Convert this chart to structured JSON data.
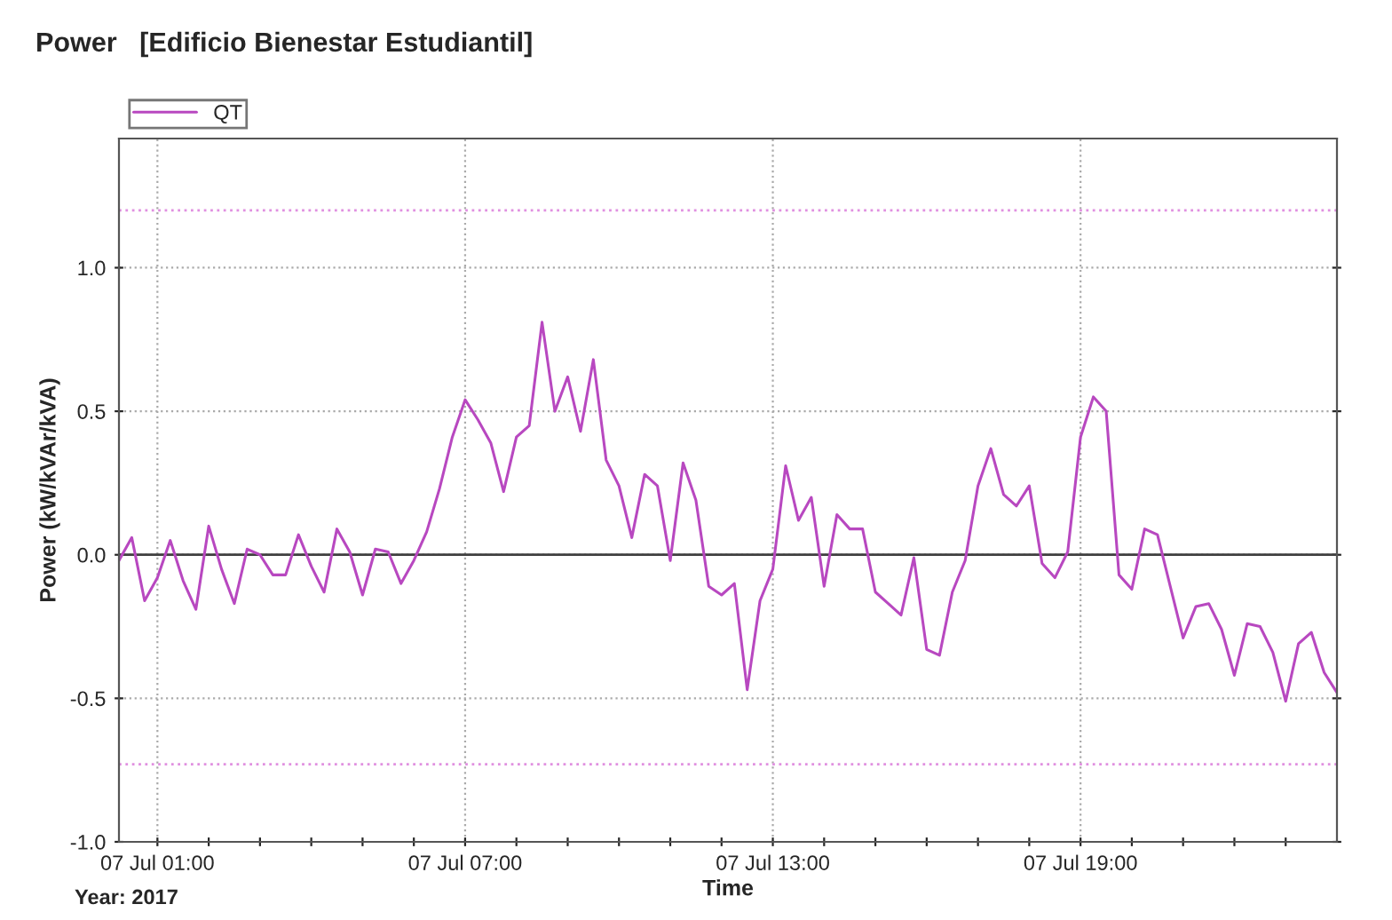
{
  "chart_data": {
    "type": "line",
    "title": "Power   [Edificio Bienestar Estudiantil]",
    "xlabel": "Time",
    "ylabel": "Power (kW/kVAr/kVA)",
    "annotations": [
      "Year: 2017"
    ],
    "x": [
      "2017-07-07T00:15",
      "2017-07-07T00:30",
      "2017-07-07T00:45",
      "2017-07-07T01:00",
      "2017-07-07T01:15",
      "2017-07-07T01:30",
      "2017-07-07T01:45",
      "2017-07-07T02:00",
      "2017-07-07T02:15",
      "2017-07-07T02:30",
      "2017-07-07T02:45",
      "2017-07-07T03:00",
      "2017-07-07T03:15",
      "2017-07-07T03:30",
      "2017-07-07T03:45",
      "2017-07-07T04:00",
      "2017-07-07T04:15",
      "2017-07-07T04:30",
      "2017-07-07T04:45",
      "2017-07-07T05:00",
      "2017-07-07T05:15",
      "2017-07-07T05:30",
      "2017-07-07T05:45",
      "2017-07-07T06:00",
      "2017-07-07T06:15",
      "2017-07-07T06:30",
      "2017-07-07T06:45",
      "2017-07-07T07:00",
      "2017-07-07T07:15",
      "2017-07-07T07:30",
      "2017-07-07T07:45",
      "2017-07-07T08:00",
      "2017-07-07T08:15",
      "2017-07-07T08:30",
      "2017-07-07T08:45",
      "2017-07-07T09:00",
      "2017-07-07T09:15",
      "2017-07-07T09:30",
      "2017-07-07T09:45",
      "2017-07-07T10:00",
      "2017-07-07T10:15",
      "2017-07-07T10:30",
      "2017-07-07T10:45",
      "2017-07-07T11:00",
      "2017-07-07T11:15",
      "2017-07-07T11:30",
      "2017-07-07T11:45",
      "2017-07-07T12:00",
      "2017-07-07T12:15",
      "2017-07-07T12:30",
      "2017-07-07T12:45",
      "2017-07-07T13:00",
      "2017-07-07T13:15",
      "2017-07-07T13:30",
      "2017-07-07T13:45",
      "2017-07-07T14:00",
      "2017-07-07T14:15",
      "2017-07-07T14:30",
      "2017-07-07T14:45",
      "2017-07-07T15:00",
      "2017-07-07T15:15",
      "2017-07-07T15:30",
      "2017-07-07T15:45",
      "2017-07-07T16:00",
      "2017-07-07T16:15",
      "2017-07-07T16:30",
      "2017-07-07T16:45",
      "2017-07-07T17:00",
      "2017-07-07T17:15",
      "2017-07-07T17:30",
      "2017-07-07T17:45",
      "2017-07-07T18:00",
      "2017-07-07T18:15",
      "2017-07-07T18:30",
      "2017-07-07T18:45",
      "2017-07-07T19:00",
      "2017-07-07T19:15",
      "2017-07-07T19:30",
      "2017-07-07T19:45",
      "2017-07-07T20:00",
      "2017-07-07T20:15",
      "2017-07-07T20:30",
      "2017-07-07T20:45",
      "2017-07-07T21:00",
      "2017-07-07T21:15",
      "2017-07-07T21:30",
      "2017-07-07T21:45",
      "2017-07-07T22:00",
      "2017-07-07T22:15",
      "2017-07-07T22:30",
      "2017-07-07T22:45",
      "2017-07-07T23:00",
      "2017-07-07T23:15",
      "2017-07-07T23:30",
      "2017-07-07T23:45",
      "2017-07-08T00:00"
    ],
    "series": [
      {
        "name": "QT",
        "color": "#b848c0",
        "values": [
          -0.02,
          0.06,
          -0.16,
          -0.08,
          0.05,
          -0.09,
          -0.19,
          0.1,
          -0.05,
          -0.17,
          0.02,
          0.0,
          -0.07,
          -0.07,
          0.07,
          -0.04,
          -0.13,
          0.09,
          0.01,
          -0.14,
          0.02,
          0.01,
          -0.1,
          -0.02,
          0.08,
          0.23,
          0.41,
          0.54,
          0.47,
          0.39,
          0.22,
          0.41,
          0.45,
          0.81,
          0.5,
          0.62,
          0.43,
          0.68,
          0.33,
          0.24,
          0.06,
          0.28,
          0.24,
          -0.02,
          0.32,
          0.19,
          -0.11,
          -0.14,
          -0.1,
          -0.47,
          -0.16,
          -0.05,
          0.31,
          0.12,
          0.2,
          -0.11,
          0.14,
          0.09,
          0.09,
          -0.13,
          -0.17,
          -0.21,
          -0.01,
          -0.33,
          -0.35,
          -0.13,
          -0.02,
          0.24,
          0.37,
          0.21,
          0.17,
          0.24,
          -0.03,
          -0.08,
          0.01,
          0.41,
          0.55,
          0.5,
          -0.07,
          -0.12,
          0.09,
          0.07,
          -0.11,
          -0.29,
          -0.18,
          -0.17,
          -0.26,
          -0.42,
          -0.24,
          -0.25,
          -0.34,
          -0.51,
          -0.31,
          -0.27,
          -0.41,
          -0.48
        ]
      }
    ],
    "xlim": [
      "2017-07-07T00:15",
      "2017-07-08T00:00"
    ],
    "xticks": [
      {
        "value": "2017-07-07T01:00",
        "label": "07 Jul 01:00"
      },
      {
        "value": "2017-07-07T02:00",
        "label": null
      },
      {
        "value": "2017-07-07T03:00",
        "label": null
      },
      {
        "value": "2017-07-07T04:00",
        "label": null
      },
      {
        "value": "2017-07-07T05:00",
        "label": null
      },
      {
        "value": "2017-07-07T06:00",
        "label": null
      },
      {
        "value": "2017-07-07T07:00",
        "label": "07 Jul 07:00"
      },
      {
        "value": "2017-07-07T08:00",
        "label": null
      },
      {
        "value": "2017-07-07T09:00",
        "label": null
      },
      {
        "value": "2017-07-07T10:00",
        "label": null
      },
      {
        "value": "2017-07-07T11:00",
        "label": null
      },
      {
        "value": "2017-07-07T12:00",
        "label": null
      },
      {
        "value": "2017-07-07T13:00",
        "label": "07 Jul 13:00"
      },
      {
        "value": "2017-07-07T14:00",
        "label": null
      },
      {
        "value": "2017-07-07T15:00",
        "label": null
      },
      {
        "value": "2017-07-07T16:00",
        "label": null
      },
      {
        "value": "2017-07-07T17:00",
        "label": null
      },
      {
        "value": "2017-07-07T18:00",
        "label": null
      },
      {
        "value": "2017-07-07T19:00",
        "label": "07 Jul 19:00"
      },
      {
        "value": "2017-07-07T20:00",
        "label": null
      },
      {
        "value": "2017-07-07T21:00",
        "label": null
      },
      {
        "value": "2017-07-07T22:00",
        "label": null
      },
      {
        "value": "2017-07-07T23:00",
        "label": null
      }
    ],
    "ylim": [
      -1.0,
      1.45
    ],
    "yticks": [
      {
        "value": -1.0,
        "label": "-1.0"
      },
      {
        "value": -0.5,
        "label": "-0.5"
      },
      {
        "value": 0,
        "label": "0.0"
      },
      {
        "value": 0.5,
        "label": "0.5"
      },
      {
        "value": 1.0,
        "label": "1.0"
      }
    ],
    "ref_lines": [
      {
        "axis": "y",
        "value": 0,
        "color": "#404040",
        "line_style": "solid"
      },
      {
        "axis": "y",
        "value": 1.2,
        "color": "#e090e0",
        "line_style": "dotted"
      },
      {
        "axis": "y",
        "value": -0.73,
        "color": "#e090e0",
        "line_style": "dotted"
      }
    ],
    "grid": true,
    "legend": "top left",
    "marker": "none",
    "line_style": "solid"
  }
}
